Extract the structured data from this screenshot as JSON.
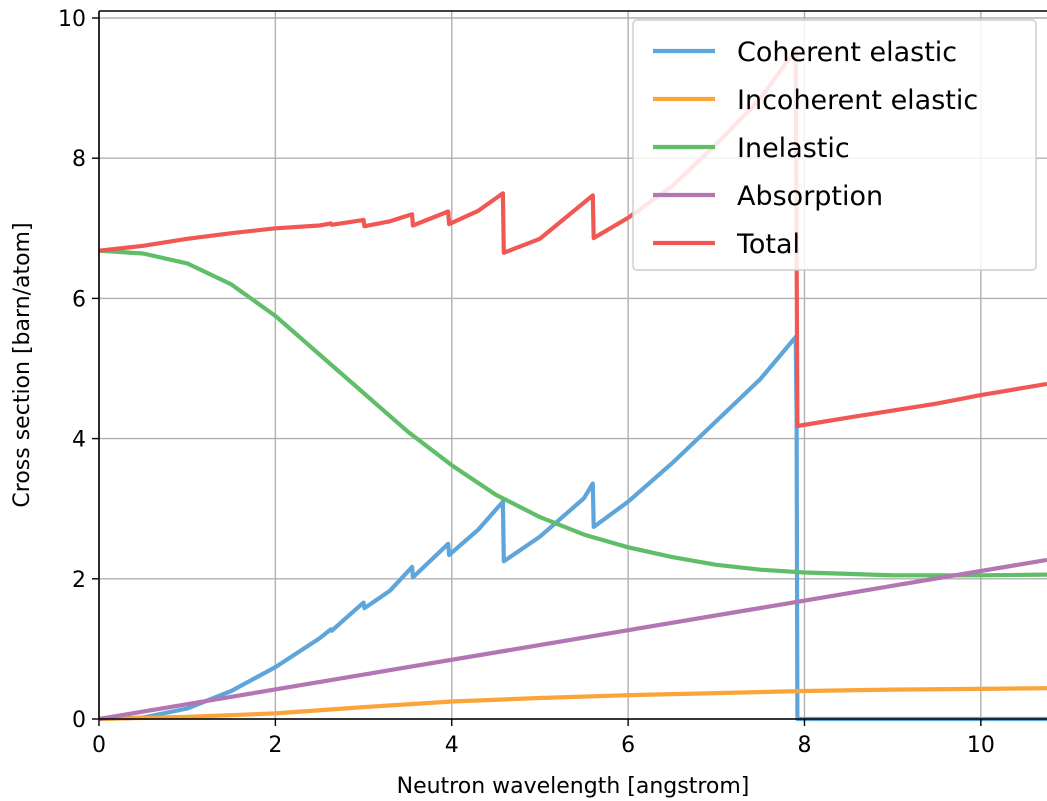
{
  "chart_data": {
    "type": "line",
    "title": "",
    "xlabel": "Neutron wavelength [angstrom]",
    "ylabel": "Cross section [barn/atom]",
    "xlim": [
      0,
      10.75
    ],
    "ylim": [
      0,
      10.1
    ],
    "xticks": [
      0,
      2,
      4,
      6,
      8,
      10
    ],
    "yticks": [
      0,
      2,
      4,
      6,
      8,
      10
    ],
    "xtick_labels": [
      "0",
      "2",
      "4",
      "6",
      "8",
      "10"
    ],
    "ytick_labels": [
      "0",
      "2",
      "4",
      "6",
      "8",
      "10"
    ],
    "grid": true,
    "legend_position": "top-right",
    "series": [
      {
        "name": "Coherent elastic",
        "color": "#5da5da",
        "points": [
          [
            0,
            0
          ],
          [
            0.5,
            0.02
          ],
          [
            1.0,
            0.15
          ],
          [
            1.5,
            0.4
          ],
          [
            2.0,
            0.74
          ],
          [
            2.5,
            1.15
          ],
          [
            2.63,
            1.28
          ],
          [
            2.64,
            1.26
          ],
          [
            2.9,
            1.55
          ],
          [
            3.0,
            1.66
          ],
          [
            3.01,
            1.58
          ],
          [
            3.3,
            1.83
          ],
          [
            3.55,
            2.17
          ],
          [
            3.56,
            2.02
          ],
          [
            3.96,
            2.5
          ],
          [
            3.97,
            2.34
          ],
          [
            4.3,
            2.7
          ],
          [
            4.58,
            3.1
          ],
          [
            4.59,
            2.25
          ],
          [
            5.0,
            2.6
          ],
          [
            5.5,
            3.15
          ],
          [
            5.6,
            3.36
          ],
          [
            5.61,
            2.74
          ],
          [
            6.0,
            3.1
          ],
          [
            6.5,
            3.65
          ],
          [
            7.0,
            4.25
          ],
          [
            7.5,
            4.85
          ],
          [
            7.9,
            5.45
          ],
          [
            7.91,
            4.3
          ],
          [
            7.92,
            0
          ],
          [
            10.75,
            0
          ]
        ]
      },
      {
        "name": "Incoherent elastic",
        "color": "#faa43a",
        "points": [
          [
            0,
            0
          ],
          [
            1,
            0.03
          ],
          [
            2,
            0.08
          ],
          [
            3,
            0.17
          ],
          [
            4,
            0.25
          ],
          [
            5,
            0.3
          ],
          [
            6,
            0.34
          ],
          [
            7,
            0.37
          ],
          [
            8,
            0.4
          ],
          [
            9,
            0.42
          ],
          [
            10,
            0.43
          ],
          [
            10.75,
            0.44
          ]
        ]
      },
      {
        "name": "Inelastic",
        "color": "#60bd68",
        "points": [
          [
            0,
            6.68
          ],
          [
            0.5,
            6.64
          ],
          [
            1,
            6.5
          ],
          [
            1.5,
            6.2
          ],
          [
            2,
            5.75
          ],
          [
            2.5,
            5.2
          ],
          [
            3,
            4.65
          ],
          [
            3.5,
            4.1
          ],
          [
            4,
            3.62
          ],
          [
            4.5,
            3.2
          ],
          [
            5,
            2.88
          ],
          [
            5.5,
            2.63
          ],
          [
            6,
            2.45
          ],
          [
            6.5,
            2.31
          ],
          [
            7,
            2.2
          ],
          [
            7.5,
            2.13
          ],
          [
            8,
            2.09
          ],
          [
            8.5,
            2.07
          ],
          [
            9,
            2.05
          ],
          [
            9.5,
            2.05
          ],
          [
            10,
            2.05
          ],
          [
            10.75,
            2.06
          ]
        ]
      },
      {
        "name": "Absorption",
        "color": "#b276b2",
        "points": [
          [
            0,
            0
          ],
          [
            10.75,
            2.27
          ]
        ]
      },
      {
        "name": "Total",
        "color": "#f15854",
        "points": [
          [
            0,
            6.68
          ],
          [
            0.5,
            6.75
          ],
          [
            1,
            6.85
          ],
          [
            1.5,
            6.93
          ],
          [
            2,
            7.0
          ],
          [
            2.5,
            7.04
          ],
          [
            2.63,
            7.07
          ],
          [
            2.64,
            7.05
          ],
          [
            3.0,
            7.12
          ],
          [
            3.01,
            7.03
          ],
          [
            3.3,
            7.1
          ],
          [
            3.55,
            7.2
          ],
          [
            3.56,
            7.04
          ],
          [
            3.96,
            7.24
          ],
          [
            3.97,
            7.06
          ],
          [
            4.3,
            7.25
          ],
          [
            4.58,
            7.5
          ],
          [
            4.59,
            6.65
          ],
          [
            5.0,
            6.85
          ],
          [
            5.6,
            7.47
          ],
          [
            5.61,
            6.86
          ],
          [
            6.0,
            7.15
          ],
          [
            6.5,
            7.6
          ],
          [
            7.0,
            8.2
          ],
          [
            7.5,
            8.85
          ],
          [
            7.9,
            9.55
          ],
          [
            7.92,
            4.18
          ],
          [
            8.5,
            4.3
          ],
          [
            9,
            4.4
          ],
          [
            9.5,
            4.5
          ],
          [
            10,
            4.62
          ],
          [
            10.75,
            4.78
          ]
        ]
      }
    ]
  }
}
